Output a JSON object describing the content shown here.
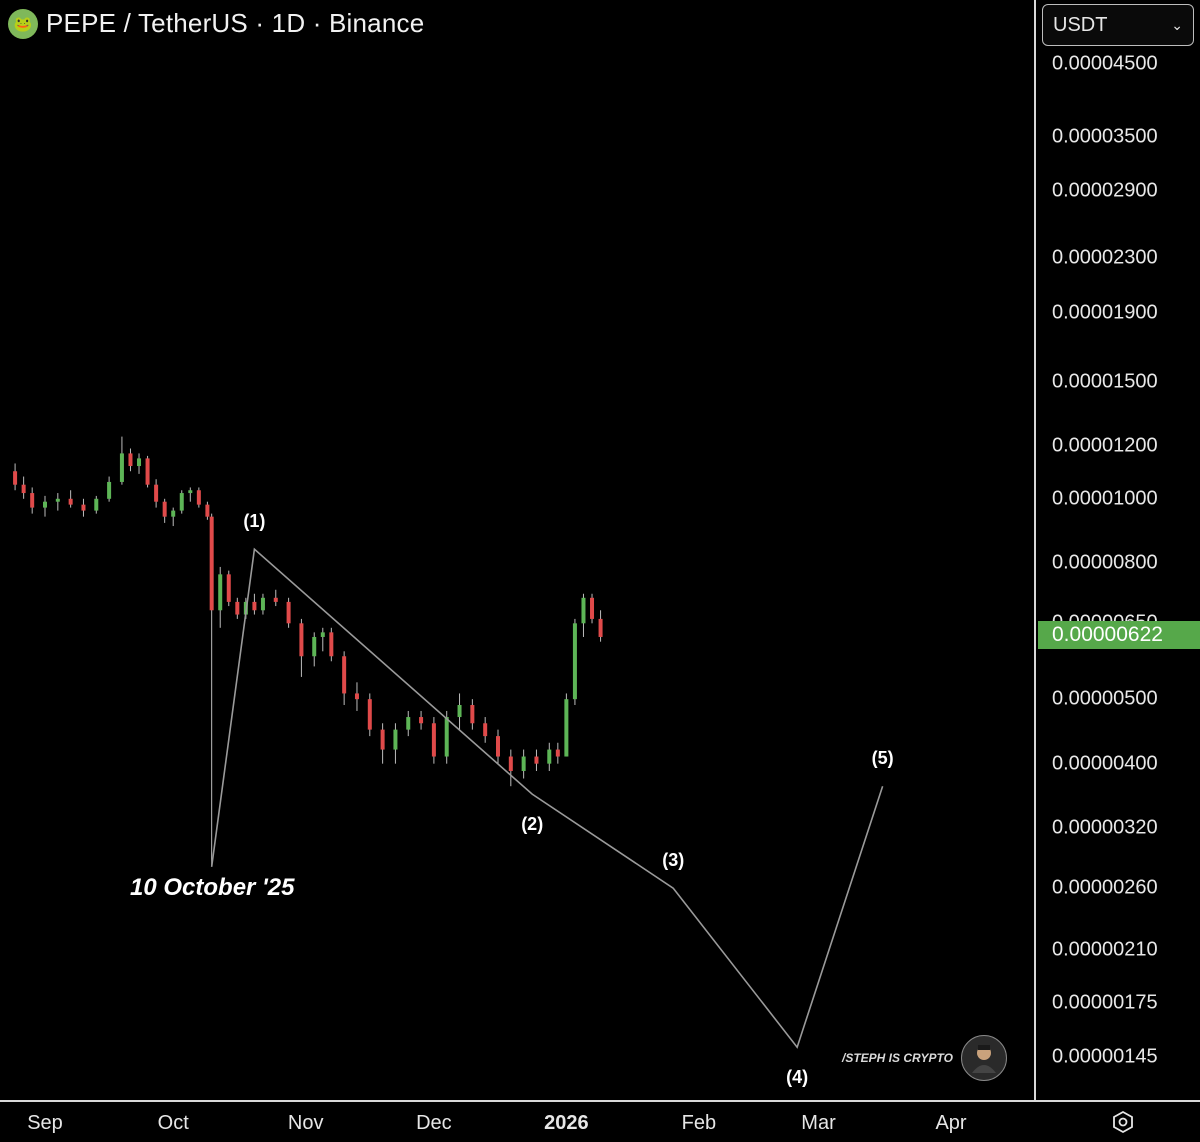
{
  "header": {
    "title": "PEPE / TetherUS · 1D · Binance",
    "logo_icon": "pepe-frog-icon"
  },
  "currency_select": {
    "value": "USDT",
    "icon": "chevron-down-icon"
  },
  "price_axis": {
    "ticks": [
      "0.00004500",
      "0.00003500",
      "0.00002900",
      "0.00002300",
      "0.00001900",
      "0.00001500",
      "0.00001200",
      "0.00001000",
      "0.00000800",
      "0.00000650",
      "0.00000500",
      "0.00000400",
      "0.00000320",
      "0.00000260",
      "0.00000210",
      "0.00000175",
      "0.00000145"
    ],
    "current_price": "0.00000622",
    "current_price_color": "#56a84a"
  },
  "time_axis": {
    "ticks": [
      "Sep",
      "Oct",
      "Nov",
      "Dec",
      "2026",
      "Feb",
      "Mar",
      "Apr"
    ],
    "settings_icon": "hexagon-settings-icon"
  },
  "annotations": {
    "wave_labels": [
      "(1)",
      "(2)",
      "(3)",
      "(4)",
      "(5)"
    ],
    "date_note": "10 October '25"
  },
  "watermark": {
    "text": "/STEPH IS CRYPTO",
    "avatar_icon": "avatar-icon"
  },
  "colors": {
    "up": "#5db556",
    "down": "#e04a4a",
    "wave_line": "#9a9a9a",
    "background": "#000000"
  },
  "chart_data": {
    "type": "candlestick",
    "scale": "log",
    "series": [
      {
        "name": "PEPE/USDT",
        "points": [
          [
            "2025-08-25",
            1.1e-05,
            1.13e-05,
            1.03e-05,
            1.05e-05
          ],
          [
            "2025-08-27",
            1.05e-05,
            1.08e-05,
            1e-05,
            1.02e-05
          ],
          [
            "2025-08-29",
            1.02e-05,
            1.04e-05,
            9.5e-06,
            9.7e-06
          ],
          [
            "2025-09-01",
            9.7e-06,
            1.01e-05,
            9.4e-06,
            9.9e-06
          ],
          [
            "2025-09-04",
            9.9e-06,
            1.02e-05,
            9.6e-06,
            1e-05
          ],
          [
            "2025-09-07",
            1e-05,
            1.03e-05,
            9.7e-06,
            9.8e-06
          ],
          [
            "2025-09-10",
            9.8e-06,
            1e-05,
            9.4e-06,
            9.6e-06
          ],
          [
            "2025-09-13",
            9.6e-06,
            1.01e-05,
            9.5e-06,
            1e-05
          ],
          [
            "2025-09-16",
            1e-05,
            1.08e-05,
            9.9e-06,
            1.06e-05
          ],
          [
            "2025-09-19",
            1.06e-05,
            1.24e-05,
            1.05e-05,
            1.17e-05
          ],
          [
            "2025-09-21",
            1.17e-05,
            1.19e-05,
            1.1e-05,
            1.12e-05
          ],
          [
            "2025-09-23",
            1.12e-05,
            1.17e-05,
            1.09e-05,
            1.15e-05
          ],
          [
            "2025-09-25",
            1.15e-05,
            1.16e-05,
            1.04e-05,
            1.05e-05
          ],
          [
            "2025-09-27",
            1.05e-05,
            1.07e-05,
            9.7e-06,
            9.9e-06
          ],
          [
            "2025-09-29",
            9.9e-06,
            1e-05,
            9.2e-06,
            9.4e-06
          ],
          [
            "2025-10-01",
            9.4e-06,
            9.7e-06,
            9.1e-06,
            9.6e-06
          ],
          [
            "2025-10-03",
            9.6e-06,
            1.03e-05,
            9.5e-06,
            1.02e-05
          ],
          [
            "2025-10-05",
            1.02e-05,
            1.04e-05,
            9.9e-06,
            1.03e-05
          ],
          [
            "2025-10-07",
            1.03e-05,
            1.04e-05,
            9.7e-06,
            9.8e-06
          ],
          [
            "2025-10-09",
            9.8e-06,
            9.9e-06,
            9.3e-06,
            9.4e-06
          ],
          [
            "2025-10-10",
            9.4e-06,
            9.5e-06,
            2.8e-06,
            6.8e-06
          ],
          [
            "2025-10-12",
            6.8e-06,
            7.9e-06,
            6.4e-06,
            7.7e-06
          ],
          [
            "2025-10-14",
            7.7e-06,
            7.8e-06,
            6.9e-06,
            7e-06
          ],
          [
            "2025-10-16",
            7e-06,
            7.1e-06,
            6.6e-06,
            6.7e-06
          ],
          [
            "2025-10-18",
            6.7e-06,
            7.1e-06,
            6.6e-06,
            7e-06
          ],
          [
            "2025-10-20",
            7e-06,
            7.2e-06,
            6.7e-06,
            6.8e-06
          ],
          [
            "2025-10-22",
            6.8e-06,
            7.2e-06,
            6.7e-06,
            7.1e-06
          ],
          [
            "2025-10-25",
            7.1e-06,
            7.3e-06,
            6.9e-06,
            7e-06
          ],
          [
            "2025-10-28",
            7e-06,
            7.1e-06,
            6.4e-06,
            6.5e-06
          ],
          [
            "2025-10-31",
            6.5e-06,
            6.6e-06,
            5.4e-06,
            5.8e-06
          ],
          [
            "2025-11-03",
            5.8e-06,
            6.3e-06,
            5.6e-06,
            6.2e-06
          ],
          [
            "2025-11-05",
            6.2e-06,
            6.4e-06,
            5.9e-06,
            6.3e-06
          ],
          [
            "2025-11-07",
            6.3e-06,
            6.4e-06,
            5.7e-06,
            5.8e-06
          ],
          [
            "2025-11-10",
            5.8e-06,
            5.9e-06,
            4.9e-06,
            5.1e-06
          ],
          [
            "2025-11-13",
            5.1e-06,
            5.3e-06,
            4.8e-06,
            5e-06
          ],
          [
            "2025-11-16",
            5e-06,
            5.1e-06,
            4.4e-06,
            4.5e-06
          ],
          [
            "2025-11-19",
            4.5e-06,
            4.6e-06,
            4e-06,
            4.2e-06
          ],
          [
            "2025-11-22",
            4.2e-06,
            4.6e-06,
            4e-06,
            4.5e-06
          ],
          [
            "2025-11-25",
            4.5e-06,
            4.8e-06,
            4.4e-06,
            4.7e-06
          ],
          [
            "2025-11-28",
            4.7e-06,
            4.8e-06,
            4.5e-06,
            4.6e-06
          ],
          [
            "2025-12-01",
            4.6e-06,
            4.7e-06,
            4e-06,
            4.1e-06
          ],
          [
            "2025-12-04",
            4.1e-06,
            4.8e-06,
            4e-06,
            4.7e-06
          ],
          [
            "2025-12-07",
            4.7e-06,
            5.1e-06,
            4.5e-06,
            4.9e-06
          ],
          [
            "2025-12-10",
            4.9e-06,
            5e-06,
            4.5e-06,
            4.6e-06
          ],
          [
            "2025-12-13",
            4.6e-06,
            4.7e-06,
            4.3e-06,
            4.4e-06
          ],
          [
            "2025-12-16",
            4.4e-06,
            4.5e-06,
            4e-06,
            4.1e-06
          ],
          [
            "2025-12-19",
            4.1e-06,
            4.2e-06,
            3.7e-06,
            3.9e-06
          ],
          [
            "2025-12-22",
            3.9e-06,
            4.2e-06,
            3.8e-06,
            4.1e-06
          ],
          [
            "2025-12-25",
            4.1e-06,
            4.2e-06,
            3.9e-06,
            4e-06
          ],
          [
            "2025-12-28",
            4e-06,
            4.3e-06,
            3.9e-06,
            4.2e-06
          ],
          [
            "2025-12-30",
            4.2e-06,
            4.3e-06,
            4e-06,
            4.1e-06
          ],
          [
            "2026-01-01",
            4.1e-06,
            5.1e-06,
            4.1e-06,
            5e-06
          ],
          [
            "2026-01-03",
            5e-06,
            6.6e-06,
            4.9e-06,
            6.5e-06
          ],
          [
            "2026-01-05",
            6.5e-06,
            7.2e-06,
            6.2e-06,
            7.1e-06
          ],
          [
            "2026-01-07",
            7.1e-06,
            7.2e-06,
            6.5e-06,
            6.6e-06
          ],
          [
            "2026-01-09",
            6.6e-06,
            6.8e-06,
            6.1e-06,
            6.2e-06
          ]
        ]
      }
    ],
    "wave_projection": {
      "name": "Elliott wave count",
      "points": [
        [
          "2025-10-10",
          2.8e-06,
          ""
        ],
        [
          "2025-10-20",
          8.4e-06,
          "(1)"
        ],
        [
          "2025-12-24",
          3.6e-06,
          "(2)"
        ],
        [
          "2026-01-26",
          2.6e-06,
          "(3)"
        ],
        [
          "2026-02-24",
          1.5e-06,
          "(4)"
        ],
        [
          "2026-03-16",
          3.7e-06,
          "(5)"
        ]
      ]
    },
    "y_ticks": [
      4.5e-05,
      3.5e-05,
      2.9e-05,
      2.3e-05,
      1.9e-05,
      1.5e-05,
      1.2e-05,
      1e-05,
      8e-06,
      6.5e-06,
      5e-06,
      4e-06,
      3.2e-06,
      2.6e-06,
      2.1e-06,
      1.75e-06,
      1.45e-06
    ],
    "x_ticks": [
      "Sep",
      "Oct",
      "Nov",
      "Dec",
      "2026",
      "Feb",
      "Mar",
      "Apr"
    ],
    "current_price": 6.22e-06,
    "grid": false
  }
}
